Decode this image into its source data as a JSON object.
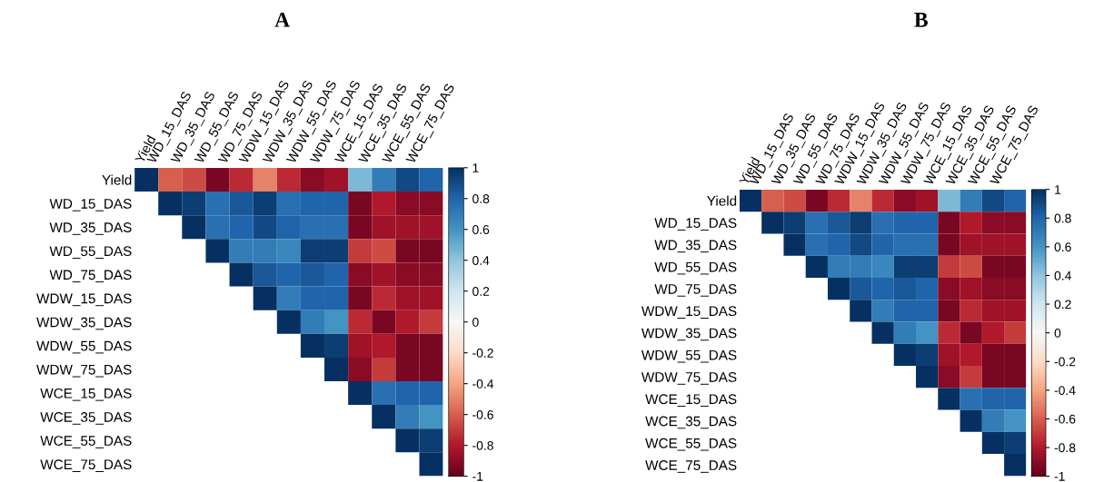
{
  "chart_data": [
    {
      "type": "heatmap",
      "title": "A",
      "categories": [
        "Yield",
        "WD_15_DAS",
        "WD_35_DAS",
        "WD_55_DAS",
        "WD_75_DAS",
        "WDW_15_DAS",
        "WDW_35_DAS",
        "WDW_55_DAS",
        "WDW_75_DAS",
        "WCE_15_DAS",
        "WCE_35_DAS",
        "WCE_55_DAS",
        "WCE_75_DAS"
      ],
      "y_categories": [
        "Yield",
        "WD_15_DAS",
        "WD_35_DAS",
        "WD_55_DAS",
        "WD_75_DAS",
        "WDW_15_DAS",
        "WDW_35_DAS",
        "WDW_55_DAS",
        "WDW_75_DAS",
        "WCE_15_DAS",
        "WCE_35_DAS",
        "WCE_55_DAS",
        "WCE_75_DAS"
      ],
      "cells": [
        [
          1,
          -0.6,
          -0.65,
          -0.95,
          -0.75,
          -0.5,
          -0.75,
          -0.9,
          -0.85,
          0.45,
          0.7,
          0.9,
          0.8
        ],
        [
          null,
          1,
          0.95,
          0.75,
          0.85,
          0.95,
          0.75,
          0.8,
          0.8,
          -0.95,
          -0.8,
          -0.9,
          -0.9
        ],
        [
          null,
          null,
          1,
          0.75,
          0.8,
          0.9,
          0.8,
          0.75,
          0.75,
          -0.95,
          -0.85,
          -0.85,
          -0.85
        ],
        [
          null,
          null,
          null,
          1,
          0.7,
          0.7,
          0.65,
          0.95,
          0.95,
          -0.7,
          -0.65,
          -0.95,
          -0.95
        ],
        [
          null,
          null,
          null,
          null,
          1,
          0.85,
          0.8,
          0.85,
          0.8,
          -0.9,
          -0.85,
          -0.9,
          -0.9
        ],
        [
          null,
          null,
          null,
          null,
          null,
          1,
          0.7,
          0.8,
          0.8,
          -0.95,
          -0.75,
          -0.85,
          -0.85
        ],
        [
          null,
          null,
          null,
          null,
          null,
          null,
          1,
          0.7,
          0.6,
          -0.75,
          -0.95,
          -0.8,
          -0.7
        ],
        [
          null,
          null,
          null,
          null,
          null,
          null,
          null,
          1,
          0.95,
          -0.85,
          -0.8,
          -0.95,
          -0.95
        ],
        [
          null,
          null,
          null,
          null,
          null,
          null,
          null,
          null,
          1,
          -0.9,
          -0.7,
          -0.95,
          -0.95
        ],
        [
          null,
          null,
          null,
          null,
          null,
          null,
          null,
          null,
          null,
          1,
          0.75,
          0.8,
          0.8
        ],
        [
          null,
          null,
          null,
          null,
          null,
          null,
          null,
          null,
          null,
          null,
          1,
          0.7,
          0.6
        ],
        [
          null,
          null,
          null,
          null,
          null,
          null,
          null,
          null,
          null,
          null,
          null,
          1,
          0.95
        ],
        [
          null,
          null,
          null,
          null,
          null,
          null,
          null,
          null,
          null,
          null,
          null,
          null,
          1
        ]
      ],
      "clim": [
        -1,
        1
      ],
      "cticks": [
        1,
        0.8,
        0.6,
        0.4,
        0.2,
        0,
        -0.2,
        -0.4,
        -0.6,
        -0.8,
        -1
      ]
    },
    {
      "type": "heatmap",
      "title": "B",
      "categories": [
        "Yield",
        "WD_15_DAS",
        "WD_35_DAS",
        "WD_55_DAS",
        "WD_75_DAS",
        "WDW_15_DAS",
        "WDW_35_DAS",
        "WDW_55_DAS",
        "WDW_75_DAS",
        "WCE_15_DAS",
        "WCE_35_DAS",
        "WCE_55_DAS",
        "WCE_75_DAS"
      ],
      "y_categories": [
        "Yield",
        "WD_15_DAS",
        "WD_35_DAS",
        "WD_55_DAS",
        "WD_75_DAS",
        "WDW_15_DAS",
        "WDW_35_DAS",
        "WDW_55_DAS",
        "WDW_75_DAS",
        "WCE_15_DAS",
        "WCE_35_DAS",
        "WCE_55_DAS",
        "WCE_75_DAS"
      ],
      "cells": [
        [
          1,
          -0.6,
          -0.65,
          -0.95,
          -0.75,
          -0.5,
          -0.75,
          -0.9,
          -0.85,
          0.45,
          0.7,
          0.9,
          0.8
        ],
        [
          null,
          1,
          0.95,
          0.75,
          0.85,
          0.95,
          0.75,
          0.8,
          0.8,
          -0.95,
          -0.8,
          -0.9,
          -0.9
        ],
        [
          null,
          null,
          1,
          0.75,
          0.8,
          0.9,
          0.8,
          0.75,
          0.75,
          -0.95,
          -0.85,
          -0.85,
          -0.85
        ],
        [
          null,
          null,
          null,
          1,
          0.7,
          0.7,
          0.65,
          0.95,
          0.95,
          -0.7,
          -0.65,
          -0.95,
          -0.95
        ],
        [
          null,
          null,
          null,
          null,
          1,
          0.85,
          0.8,
          0.85,
          0.8,
          -0.9,
          -0.85,
          -0.9,
          -0.9
        ],
        [
          null,
          null,
          null,
          null,
          null,
          1,
          0.7,
          0.8,
          0.8,
          -0.95,
          -0.75,
          -0.85,
          -0.85
        ],
        [
          null,
          null,
          null,
          null,
          null,
          null,
          1,
          0.7,
          0.6,
          -0.75,
          -0.95,
          -0.8,
          -0.7
        ],
        [
          null,
          null,
          null,
          null,
          null,
          null,
          null,
          1,
          0.95,
          -0.85,
          -0.8,
          -0.95,
          -0.95
        ],
        [
          null,
          null,
          null,
          null,
          null,
          null,
          null,
          null,
          1,
          -0.9,
          -0.7,
          -0.95,
          -0.95
        ],
        [
          null,
          null,
          null,
          null,
          null,
          null,
          null,
          null,
          null,
          1,
          0.75,
          0.8,
          0.8
        ],
        [
          null,
          null,
          null,
          null,
          null,
          null,
          null,
          null,
          null,
          null,
          1,
          0.7,
          0.6
        ],
        [
          null,
          null,
          null,
          null,
          null,
          null,
          null,
          null,
          null,
          null,
          null,
          1,
          0.95
        ],
        [
          null,
          null,
          null,
          null,
          null,
          null,
          null,
          null,
          null,
          null,
          null,
          null,
          1
        ]
      ],
      "clim": [
        -1,
        1
      ],
      "cticks": [
        1,
        0.8,
        0.6,
        0.4,
        0.2,
        0,
        -0.2,
        -0.4,
        -0.6,
        -0.8,
        -1
      ]
    }
  ]
}
